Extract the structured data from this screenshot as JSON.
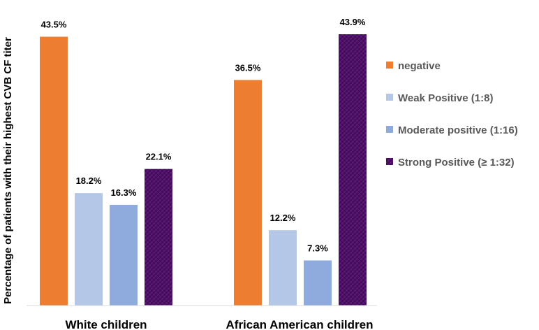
{
  "chart_data": {
    "type": "bar",
    "title": "",
    "xlabel": "",
    "ylabel": "Percentage of patients with their highest CVB CF titer",
    "categories": [
      "White children",
      "African American children"
    ],
    "series": [
      {
        "name": "negative",
        "values": [
          43.5,
          36.5
        ],
        "labels": [
          "43.5%",
          "36.5%"
        ],
        "color": "#ed7d31"
      },
      {
        "name": "Weak Positive (1:8)",
        "values": [
          18.2,
          12.2
        ],
        "labels": [
          "18.2%",
          "12.2%"
        ],
        "color": "#b4c7e7"
      },
      {
        "name": "Moderate positive (1:16)",
        "values": [
          16.3,
          7.3
        ],
        "labels": [
          "16.3%",
          "7.3%"
        ],
        "color": "#8faadc"
      },
      {
        "name": "Strong Positive (≥ 1:32)",
        "values": [
          22.1,
          43.9
        ],
        "labels": [
          "22.1%",
          "43.9%"
        ],
        "color": "#4b0f63"
      }
    ],
    "ylim": [
      0,
      43.9
    ],
    "grid": false,
    "legend": "right"
  }
}
